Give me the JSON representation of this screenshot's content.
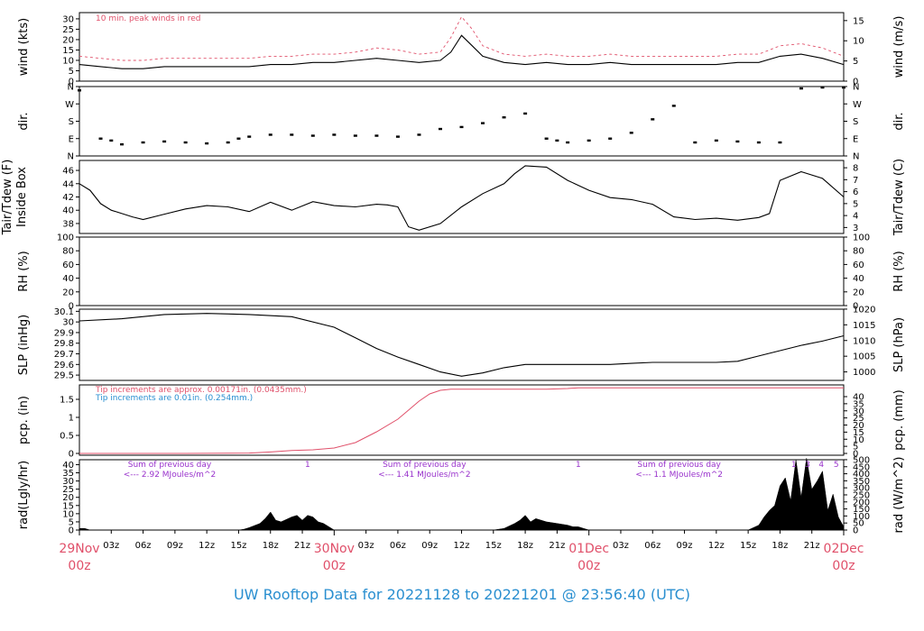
{
  "footer": "UW Rooftop Data for 20221128  to  20221201 @ 23:56:40  (UTC)",
  "colors": {
    "peak": "#e0506a",
    "pcp_red": "#e0506a",
    "pcp_blue": "#2a8fd0",
    "rad_text": "#9932cc",
    "footer": "#2a8fd0"
  },
  "time_axis": {
    "hours_start": 0,
    "hours_end": 72,
    "tick_labels": [
      "03z",
      "06z",
      "09z",
      "12z",
      "15z",
      "18z",
      "21z",
      "03z",
      "06z",
      "09z",
      "12z",
      "15z",
      "18z",
      "21z",
      "03z",
      "06z",
      "09z",
      "12z",
      "15z",
      "18z",
      "21z"
    ],
    "tick_hours": [
      3,
      6,
      9,
      12,
      15,
      18,
      21,
      27,
      30,
      33,
      36,
      39,
      42,
      45,
      51,
      54,
      57,
      60,
      63,
      66,
      69
    ],
    "dates": [
      {
        "hour": 0,
        "day": "29Nov",
        "z": "00z"
      },
      {
        "hour": 24,
        "day": "30Nov",
        "z": "00z"
      },
      {
        "hour": 48,
        "day": "01Dec",
        "z": "00z"
      },
      {
        "hour": 72,
        "day": "02Dec",
        "z": "00z"
      }
    ]
  },
  "chart_data": [
    {
      "type": "line",
      "id": "wind",
      "ylabel_left": "wind (kts)",
      "ylabel_right": "wind (m/s)",
      "ylim": [
        0,
        33
      ],
      "yticks_left": [
        0,
        5,
        10,
        15,
        20,
        25,
        30
      ],
      "yticks_right": [
        0,
        5,
        10,
        15
      ],
      "annotation": "10 min. peak winds in red",
      "x": [
        0,
        2,
        4,
        6,
        8,
        10,
        12,
        14,
        16,
        18,
        20,
        22,
        24,
        26,
        28,
        30,
        32,
        34,
        35,
        36,
        37,
        38,
        40,
        42,
        44,
        46,
        48,
        50,
        52,
        54,
        56,
        58,
        60,
        62,
        64,
        66,
        68,
        70,
        72
      ],
      "mean": [
        8,
        7,
        6,
        6,
        7,
        7,
        7,
        7,
        7,
        8,
        8,
        9,
        9,
        10,
        11,
        10,
        9,
        10,
        14,
        22,
        17,
        12,
        9,
        8,
        9,
        8,
        8,
        9,
        8,
        8,
        8,
        8,
        8,
        9,
        9,
        12,
        13,
        11,
        8
      ],
      "peak": [
        12,
        11,
        10,
        10,
        11,
        11,
        11,
        11,
        11,
        12,
        12,
        13,
        13,
        14,
        16,
        15,
        13,
        14,
        21,
        31,
        25,
        17,
        13,
        12,
        13,
        12,
        12,
        13,
        12,
        12,
        12,
        12,
        12,
        13,
        13,
        17,
        18,
        16,
        12
      ]
    },
    {
      "type": "scatter",
      "id": "dir",
      "ylabel_left": "dir.",
      "ylabel_right": "dir.",
      "ytick_labels": [
        "N",
        "E",
        "S",
        "W",
        "N"
      ],
      "ytick_values": [
        0,
        90,
        180,
        270,
        360
      ],
      "x": [
        0,
        2,
        3,
        4,
        6,
        8,
        10,
        12,
        14,
        15,
        16,
        18,
        20,
        22,
        24,
        26,
        28,
        30,
        32,
        34,
        36,
        38,
        40,
        42,
        44,
        45,
        46,
        48,
        50,
        52,
        54,
        56,
        58,
        60,
        62,
        64,
        66,
        68,
        70,
        72
      ],
      "y": [
        340,
        90,
        80,
        60,
        70,
        75,
        70,
        65,
        70,
        90,
        100,
        110,
        110,
        105,
        110,
        105,
        105,
        100,
        110,
        140,
        150,
        170,
        200,
        220,
        90,
        80,
        70,
        80,
        90,
        120,
        190,
        260,
        70,
        80,
        75,
        70,
        70,
        350,
        355,
        355
      ]
    },
    {
      "type": "line",
      "id": "temp",
      "ylabel_left": "Tair/Tdew (F)\nInside Box",
      "ylabel_right": "Tair/Tdew (C)",
      "ylim": [
        36.5,
        47.5
      ],
      "yticks_left": [
        38,
        40,
        42,
        44,
        46
      ],
      "yticks_right": [
        3,
        4,
        5,
        6,
        7,
        8
      ],
      "x": [
        0,
        1,
        2,
        3,
        4,
        5,
        6,
        8,
        10,
        12,
        14,
        16,
        18,
        20,
        22,
        24,
        26,
        28,
        29,
        30,
        31,
        32,
        34,
        36,
        38,
        40,
        41,
        42,
        44,
        46,
        48,
        50,
        52,
        54,
        56,
        58,
        60,
        62,
        64,
        65,
        66,
        68,
        70,
        72
      ],
      "tair": [
        44,
        43,
        41,
        40,
        39.5,
        39,
        38.6,
        39.4,
        40.2,
        40.7,
        40.5,
        39.8,
        41.2,
        40,
        41.3,
        40.7,
        40.5,
        40.9,
        40.8,
        40.5,
        37.5,
        37,
        38,
        40.5,
        42.5,
        44,
        45.5,
        46.7,
        46.5,
        44.5,
        43,
        41.9,
        41.6,
        40.9,
        39,
        38.6,
        38.8,
        38.5,
        38.9,
        39.5,
        44.5,
        45.8,
        44.8,
        42
      ]
    },
    {
      "type": "line",
      "id": "rh",
      "ylabel_left": "RH (%)",
      "ylabel_right": "RH (%)",
      "ylim": [
        0,
        100
      ],
      "yticks": [
        0,
        20,
        40,
        60,
        80,
        100
      ],
      "x": [],
      "y": []
    },
    {
      "type": "line",
      "id": "slp",
      "ylabel_left": "SLP (inHg)",
      "ylabel_right": "SLP (hPa)",
      "ylim": [
        29.45,
        30.12
      ],
      "yticks_left": [
        29.5,
        29.6,
        29.7,
        29.8,
        29.9,
        30.0,
        30.1
      ],
      "yticks_right": [
        1000,
        1005,
        1010,
        1015,
        1020
      ],
      "x": [
        0,
        4,
        8,
        12,
        16,
        20,
        24,
        26,
        28,
        30,
        32,
        34,
        36,
        38,
        40,
        42,
        44,
        46,
        48,
        50,
        52,
        54,
        56,
        58,
        60,
        62,
        64,
        66,
        68,
        70,
        72
      ],
      "y": [
        30.01,
        30.03,
        30.07,
        30.08,
        30.07,
        30.05,
        29.95,
        29.85,
        29.75,
        29.67,
        29.6,
        29.53,
        29.49,
        29.52,
        29.57,
        29.6,
        29.6,
        29.6,
        29.6,
        29.6,
        29.61,
        29.62,
        29.62,
        29.62,
        29.62,
        29.63,
        29.68,
        29.73,
        29.78,
        29.82,
        29.87
      ]
    },
    {
      "type": "line",
      "id": "pcp",
      "ylabel_left": "pcp. (in)",
      "ylabel_right": "pcp. (mm)",
      "ylim": [
        -0.05,
        1.9
      ],
      "yticks_left": [
        0.0,
        0.5,
        1.0,
        1.5
      ],
      "yticks_right": [
        0,
        5,
        10,
        15,
        20,
        25,
        30,
        35,
        40
      ],
      "note_red": "Tip increments are approx. 0.00171in. (0.0435mm.)",
      "note_blue": "Tip increments are 0.01in. (0.254mm.)",
      "x": [
        0,
        10,
        16,
        18,
        20,
        22,
        24,
        26,
        28,
        30,
        31,
        32,
        33,
        34,
        35,
        36,
        38,
        40,
        44,
        46,
        47,
        48,
        56,
        64,
        72
      ],
      "y": [
        0,
        0,
        0.01,
        0.04,
        0.08,
        0.1,
        0.15,
        0.3,
        0.6,
        0.95,
        1.2,
        1.45,
        1.65,
        1.75,
        1.78,
        1.78,
        1.78,
        1.78,
        1.78,
        1.8,
        1.82,
        1.82,
        1.82,
        1.82,
        1.82
      ]
    },
    {
      "type": "area",
      "id": "rad",
      "ylabel_left": "rad(Lgly/hr)",
      "ylabel_right": "rad (W/m^2)",
      "ylim": [
        0,
        43
      ],
      "yticks_left": [
        0,
        5,
        10,
        15,
        20,
        25,
        30,
        35,
        40
      ],
      "yticks_right": [
        0,
        50,
        100,
        150,
        200,
        250,
        300,
        350,
        400,
        450,
        500
      ],
      "day_sums": [
        {
          "hour": 8.5,
          "line1": "Sum of previous day",
          "line2": "<--- 2.92 MJoules/m^2"
        },
        {
          "hour": 32.5,
          "line1": "Sum of previous day",
          "line2": "<--- 1.41 MJoules/m^2"
        },
        {
          "hour": 56.5,
          "line1": "Sum of previous day",
          "line2": "<--- 1.1 MJoules/m^2"
        }
      ],
      "markers": [
        {
          "hour": 21.5,
          "label": "1"
        },
        {
          "hour": 47.0,
          "label": "1"
        },
        {
          "hour": 67.3,
          "label": "1"
        },
        {
          "hour": 68.6,
          "label": "3"
        },
        {
          "hour": 69.9,
          "label": "4"
        },
        {
          "hour": 71.3,
          "label": "5"
        }
      ],
      "x": [
        0,
        0.5,
        1,
        15,
        15.5,
        16,
        17,
        17.5,
        18,
        18.5,
        19,
        20,
        20.5,
        21,
        21.5,
        22,
        22.5,
        23,
        24,
        39,
        40,
        41,
        41.5,
        42,
        42.5,
        43,
        44,
        45,
        46,
        46.5,
        47,
        47.5,
        48,
        63,
        64,
        64.5,
        65,
        65.5,
        66,
        66.5,
        67,
        67.5,
        68,
        68.5,
        69,
        69.5,
        70,
        70.5,
        71,
        71.5,
        72
      ],
      "y": [
        1,
        1,
        0,
        0,
        0.5,
        1.5,
        4,
        7,
        11,
        6,
        5,
        8,
        9,
        6,
        9,
        8,
        5,
        4,
        0,
        0,
        1,
        4,
        6,
        9,
        5,
        7,
        5,
        4,
        3,
        2,
        2,
        1,
        0,
        0,
        3,
        8,
        12,
        15,
        27,
        32,
        18,
        43,
        20,
        44,
        25,
        30,
        36,
        12,
        22,
        8,
        2
      ]
    }
  ]
}
